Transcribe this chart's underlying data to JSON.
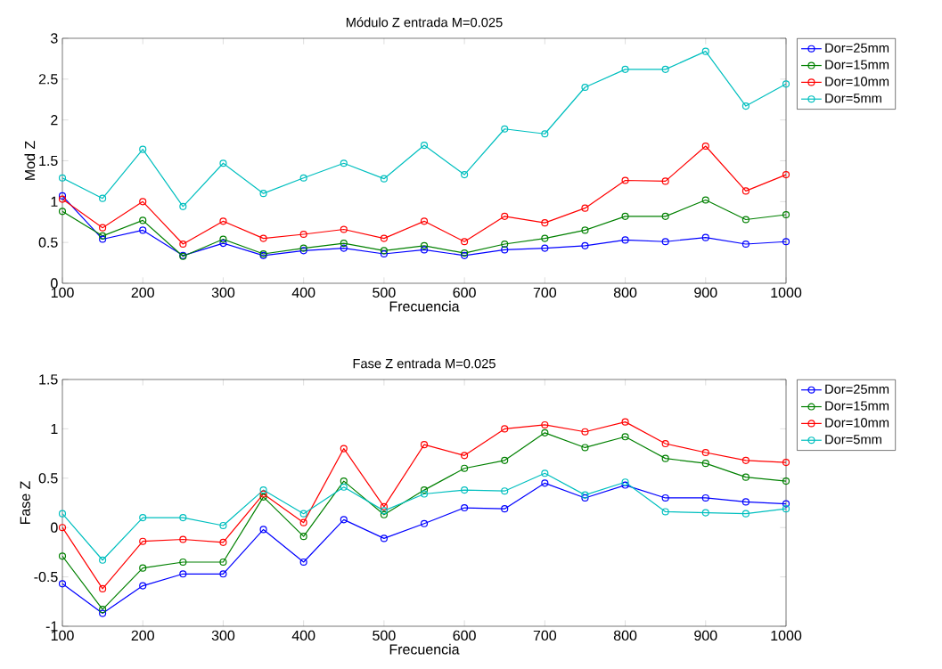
{
  "chart_data": [
    {
      "type": "line",
      "title": "Módulo Z entrada M=0.025",
      "xlabel": "Frecuencia",
      "ylabel": "Mod Z",
      "x": [
        100,
        150,
        200,
        250,
        300,
        350,
        400,
        450,
        500,
        550,
        600,
        650,
        700,
        750,
        800,
        850,
        900,
        950,
        1000
      ],
      "xlim": [
        100,
        1000
      ],
      "ylim": [
        0,
        3
      ],
      "xticks": [
        100,
        200,
        300,
        400,
        500,
        600,
        700,
        800,
        900,
        1000
      ],
      "yticks": [
        0,
        0.5,
        1,
        1.5,
        2,
        2.5,
        3
      ],
      "marker": "circle",
      "line_style": "solid",
      "grid": false,
      "legend": "top right",
      "series": [
        {
          "name": "Dor=25mm",
          "color": "#0000ff",
          "values": [
            1.07,
            0.54,
            0.65,
            0.34,
            0.49,
            0.34,
            0.4,
            0.43,
            0.36,
            0.41,
            0.34,
            0.41,
            0.43,
            0.46,
            0.53,
            0.51,
            0.56,
            0.48,
            0.51
          ]
        },
        {
          "name": "Dor=15mm",
          "color": "#008000",
          "values": [
            0.88,
            0.58,
            0.77,
            0.33,
            0.54,
            0.36,
            0.43,
            0.49,
            0.4,
            0.46,
            0.37,
            0.48,
            0.55,
            0.65,
            0.82,
            0.82,
            1.02,
            0.78,
            0.84
          ]
        },
        {
          "name": "Dor=10mm",
          "color": "#ff0000",
          "values": [
            1.03,
            0.68,
            1.0,
            0.48,
            0.76,
            0.55,
            0.6,
            0.66,
            0.55,
            0.76,
            0.51,
            0.82,
            0.74,
            0.92,
            1.26,
            1.25,
            1.68,
            1.13,
            1.33
          ]
        },
        {
          "name": "Dor=5mm",
          "color": "#00bfbf",
          "values": [
            1.29,
            1.04,
            1.64,
            0.94,
            1.47,
            1.1,
            1.29,
            1.47,
            1.28,
            1.69,
            1.33,
            1.89,
            1.83,
            2.4,
            2.62,
            2.62,
            2.84,
            2.17,
            2.44
          ]
        }
      ]
    },
    {
      "type": "line",
      "title": "Fase Z entrada M=0.025",
      "xlabel": "Frecuencia",
      "ylabel": "Fase Z",
      "x": [
        100,
        150,
        200,
        250,
        300,
        350,
        400,
        450,
        500,
        550,
        600,
        650,
        700,
        750,
        800,
        850,
        900,
        950,
        1000
      ],
      "xlim": [
        100,
        1000
      ],
      "ylim": [
        -1,
        1.5
      ],
      "xticks": [
        100,
        200,
        300,
        400,
        500,
        600,
        700,
        800,
        900,
        1000
      ],
      "yticks": [
        -1,
        -0.5,
        0,
        0.5,
        1,
        1.5
      ],
      "marker": "circle",
      "line_style": "solid",
      "grid": false,
      "legend": "top right",
      "series": [
        {
          "name": "Dor=25mm",
          "color": "#0000ff",
          "values": [
            -0.57,
            -0.87,
            -0.59,
            -0.47,
            -0.47,
            -0.02,
            -0.35,
            0.08,
            -0.11,
            0.04,
            0.2,
            0.19,
            0.45,
            0.3,
            0.43,
            0.3,
            0.3,
            0.26,
            0.24
          ]
        },
        {
          "name": "Dor=15mm",
          "color": "#008000",
          "values": [
            -0.29,
            -0.83,
            -0.41,
            -0.35,
            -0.35,
            0.31,
            -0.09,
            0.47,
            0.13,
            0.38,
            0.6,
            0.68,
            0.96,
            0.81,
            0.92,
            0.7,
            0.65,
            0.51,
            0.47
          ]
        },
        {
          "name": "Dor=10mm",
          "color": "#ff0000",
          "values": [
            0.0,
            -0.62,
            -0.14,
            -0.12,
            -0.15,
            0.34,
            0.05,
            0.8,
            0.21,
            0.84,
            0.73,
            1.0,
            1.04,
            0.97,
            1.07,
            0.85,
            0.76,
            0.68,
            0.66
          ]
        },
        {
          "name": "Dor=5mm",
          "color": "#00bfbf",
          "values": [
            0.14,
            -0.33,
            0.1,
            0.1,
            0.02,
            0.38,
            0.14,
            0.41,
            0.17,
            0.34,
            0.38,
            0.37,
            0.55,
            0.33,
            0.46,
            0.16,
            0.15,
            0.14,
            0.19
          ]
        }
      ]
    }
  ]
}
